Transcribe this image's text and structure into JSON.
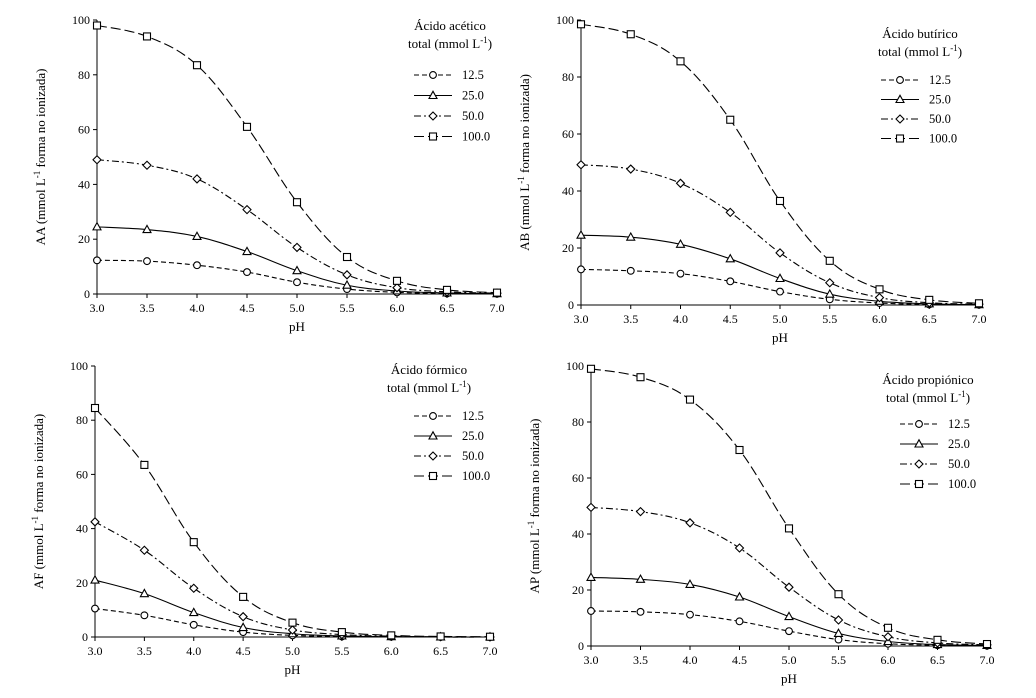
{
  "chart_data": [
    {
      "type": "line",
      "title": [
        "Ácido acético",
        "total (mmol L",
        "-1",
        ")"
      ],
      "xlabel": "pH",
      "ylabel": [
        "AA (mmol L",
        "-1",
        " forma no ionizada)"
      ],
      "x": [
        3.0,
        3.5,
        4.0,
        4.5,
        5.0,
        5.5,
        6.0,
        6.5,
        7.0
      ],
      "xtick_labels": [
        "3.0",
        "3.5",
        "4.0",
        "4.5",
        "5.0",
        "5.5",
        "6.0",
        "6.5",
        "7.0"
      ],
      "xlim": [
        3.0,
        7.0
      ],
      "ylim": [
        0,
        100
      ],
      "ytick_labels": [
        "0",
        "20",
        "40",
        "60",
        "80",
        "100"
      ],
      "series": [
        {
          "name": "12.5",
          "marker": "circle",
          "dash": "short",
          "values": [
            12.3,
            12.0,
            10.5,
            8.0,
            4.3,
            1.8,
            0.6,
            0.2,
            0.1
          ]
        },
        {
          "name": "25.0",
          "marker": "triangle",
          "dash": "solid",
          "values": [
            24.5,
            23.5,
            21.0,
            15.5,
            8.5,
            3.2,
            1.1,
            0.4,
            0.1
          ]
        },
        {
          "name": "50.0",
          "marker": "diamond",
          "dash": "dashdot",
          "values": [
            49.0,
            47.0,
            42.0,
            30.8,
            17.0,
            7.0,
            2.3,
            0.8,
            0.3
          ]
        },
        {
          "name": "100.0",
          "marker": "square",
          "dash": "long",
          "values": [
            98.0,
            94.0,
            83.5,
            61.0,
            33.5,
            13.5,
            4.8,
            1.5,
            0.5
          ]
        }
      ]
    },
    {
      "type": "line",
      "title": [
        "Ácido butírico",
        "total (mmol L",
        "-1",
        ")"
      ],
      "xlabel": "pH",
      "ylabel": [
        "AB (mmol L",
        "-1",
        " forma no ionizada)"
      ],
      "x": [
        3.0,
        3.5,
        4.0,
        4.5,
        5.0,
        5.5,
        6.0,
        6.5,
        7.0
      ],
      "xtick_labels": [
        "3.0",
        "3.5",
        "4.0",
        "4.5",
        "5.0",
        "5.5",
        "6.0",
        "6.5",
        "7.0"
      ],
      "xlim": [
        3.0,
        7.0
      ],
      "ylim": [
        0,
        100
      ],
      "ytick_labels": [
        "0",
        "20",
        "40",
        "60",
        "80",
        "100"
      ],
      "series": [
        {
          "name": "12.5",
          "marker": "circle",
          "dash": "short",
          "values": [
            12.5,
            12.0,
            11.0,
            8.3,
            4.7,
            2.0,
            0.7,
            0.2,
            0.1
          ]
        },
        {
          "name": "25.0",
          "marker": "triangle",
          "dash": "solid",
          "values": [
            24.5,
            23.8,
            21.3,
            16.2,
            9.3,
            3.8,
            1.3,
            0.4,
            0.1
          ]
        },
        {
          "name": "50.0",
          "marker": "diamond",
          "dash": "dashdot",
          "values": [
            49.2,
            47.7,
            42.7,
            32.5,
            18.3,
            7.8,
            2.6,
            0.8,
            0.3
          ]
        },
        {
          "name": "100.0",
          "marker": "square",
          "dash": "long",
          "values": [
            98.5,
            95.0,
            85.5,
            65.0,
            36.5,
            15.5,
            5.5,
            1.8,
            0.6
          ]
        }
      ]
    },
    {
      "type": "line",
      "title": [
        "Ácido fórmico",
        "total (mmol L",
        "-1",
        ")"
      ],
      "xlabel": "pH",
      "ylabel": [
        "AF (mmol L",
        "-1",
        " forma no ionizada)"
      ],
      "x": [
        3.0,
        3.5,
        4.0,
        4.5,
        5.0,
        5.5,
        6.0,
        6.5,
        7.0
      ],
      "xtick_labels": [
        "3.0",
        "3.5",
        "4.0",
        "4.5",
        "5.0",
        "5.5",
        "6.0",
        "6.5",
        "7.0"
      ],
      "xlim": [
        3.0,
        7.0
      ],
      "ylim": [
        0,
        100
      ],
      "ytick_labels": [
        "0",
        "20",
        "40",
        "60",
        "80",
        "100"
      ],
      "series": [
        {
          "name": "12.5",
          "marker": "circle",
          "dash": "short",
          "values": [
            10.5,
            8.0,
            4.5,
            1.8,
            0.6,
            0.2,
            0.1,
            0.0,
            0.0
          ]
        },
        {
          "name": "25.0",
          "marker": "triangle",
          "dash": "solid",
          "values": [
            21.0,
            16.0,
            9.0,
            3.5,
            1.2,
            0.4,
            0.1,
            0.0,
            0.0
          ]
        },
        {
          "name": "50.0",
          "marker": "diamond",
          "dash": "dashdot",
          "values": [
            42.5,
            32.0,
            18.0,
            7.5,
            2.6,
            0.9,
            0.3,
            0.1,
            0.0
          ]
        },
        {
          "name": "100.0",
          "marker": "square",
          "dash": "long",
          "values": [
            84.5,
            63.5,
            35.0,
            14.8,
            5.3,
            1.8,
            0.6,
            0.2,
            0.1
          ]
        }
      ]
    },
    {
      "type": "line",
      "title": [
        "Ácido propiónico",
        "total (mmol L",
        "-1",
        ")"
      ],
      "xlabel": "pH",
      "ylabel": [
        "AP (mmol L",
        "-1",
        " forma no ionizada)"
      ],
      "x": [
        3.0,
        3.5,
        4.0,
        4.5,
        5.0,
        5.5,
        6.0,
        6.5,
        7.0
      ],
      "xtick_labels": [
        "3.0",
        "3.5",
        "4.0",
        "4.5",
        "5.0",
        "5.5",
        "6.0",
        "6.5",
        "7.0"
      ],
      "xlim": [
        3.0,
        7.0
      ],
      "ylim": [
        0,
        100
      ],
      "ytick_labels": [
        "0",
        "20",
        "40",
        "60",
        "80",
        "100"
      ],
      "series": [
        {
          "name": "12.5",
          "marker": "circle",
          "dash": "short",
          "values": [
            12.5,
            12.2,
            11.2,
            8.8,
            5.3,
            2.3,
            0.8,
            0.3,
            0.1
          ]
        },
        {
          "name": "25.0",
          "marker": "triangle",
          "dash": "solid",
          "values": [
            24.5,
            23.8,
            22.0,
            17.5,
            10.5,
            4.5,
            1.6,
            0.5,
            0.2
          ]
        },
        {
          "name": "50.0",
          "marker": "diamond",
          "dash": "dashdot",
          "values": [
            49.5,
            48.0,
            44.0,
            35.0,
            21.0,
            9.3,
            3.3,
            1.1,
            0.4
          ]
        },
        {
          "name": "100.0",
          "marker": "square",
          "dash": "long",
          "values": [
            99.0,
            96.0,
            88.0,
            70.0,
            42.0,
            18.5,
            6.5,
            2.2,
            0.7
          ]
        }
      ]
    }
  ]
}
